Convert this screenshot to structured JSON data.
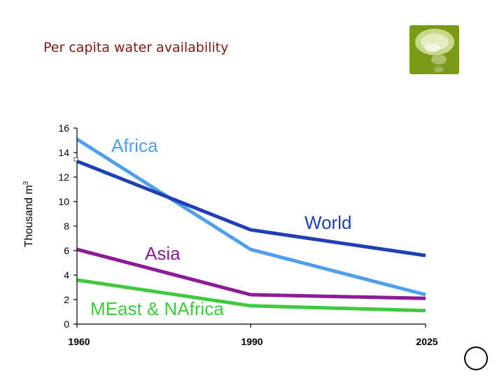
{
  "slide": {
    "title": "Per capita water availability"
  },
  "logo": {
    "icon": "speech-bubble-logo-icon",
    "color": "#7a9b17"
  },
  "chart_data": {
    "type": "line",
    "title": "",
    "xlabel": "",
    "ylabel": "Thousand m",
    "ylabel_superscript": "3",
    "x": [
      1960,
      1990,
      2025
    ],
    "xticks": [
      "1960",
      "1990",
      "2025"
    ],
    "ylim": [
      0,
      16
    ],
    "yticks": [
      "0",
      "2",
      "4",
      "6",
      "8",
      "10",
      "12",
      "14",
      "16"
    ],
    "grid": false,
    "legend": "inline labels",
    "series": [
      {
        "name": "Africa",
        "values": [
          15.1,
          6.1,
          2.4
        ],
        "color": "#4f9fee"
      },
      {
        "name": "World",
        "values": [
          13.3,
          7.7,
          5.6
        ],
        "color": "#1f3fb6"
      },
      {
        "name": "Asia",
        "values": [
          6.1,
          2.4,
          2.1
        ],
        "color": "#8d1a96"
      },
      {
        "name": "MEast & NAfrica",
        "values": [
          3.6,
          1.5,
          1.1
        ],
        "color": "#3ec93e"
      }
    ]
  }
}
